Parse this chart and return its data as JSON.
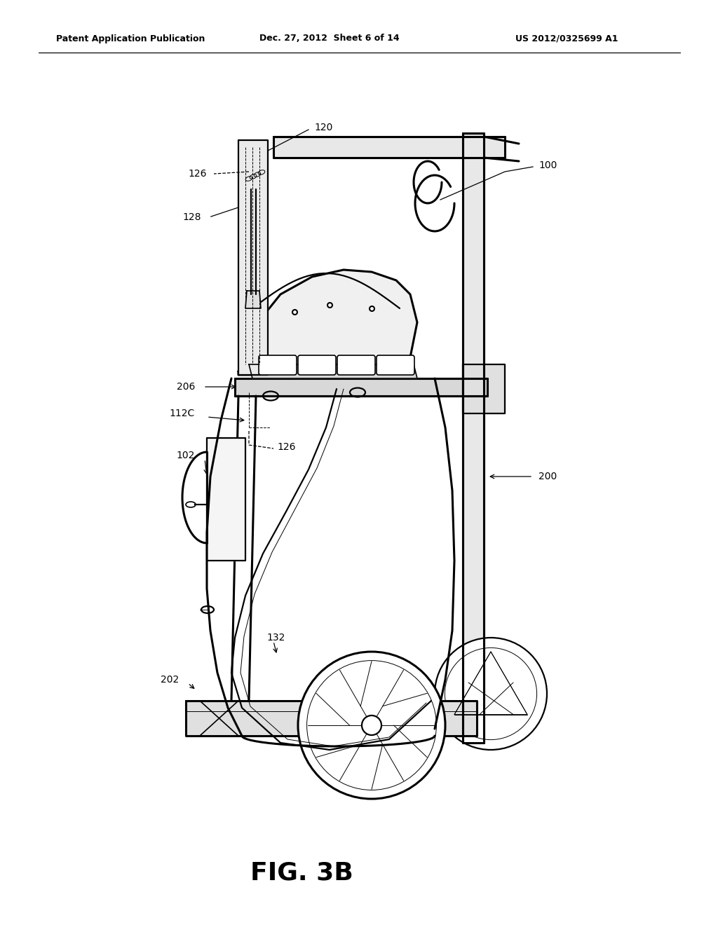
{
  "background_color": "#ffffff",
  "header_text": "Patent Application Publication",
  "header_date": "Dec. 27, 2012  Sheet 6 of 14",
  "header_patent": "US 2012/0325699 A1",
  "figure_label": "FIG. 3B",
  "line_color": "#000000",
  "lw": 1.2,
  "lw_thin": 0.7,
  "lw_thick": 2.2,
  "lw_med": 1.6
}
